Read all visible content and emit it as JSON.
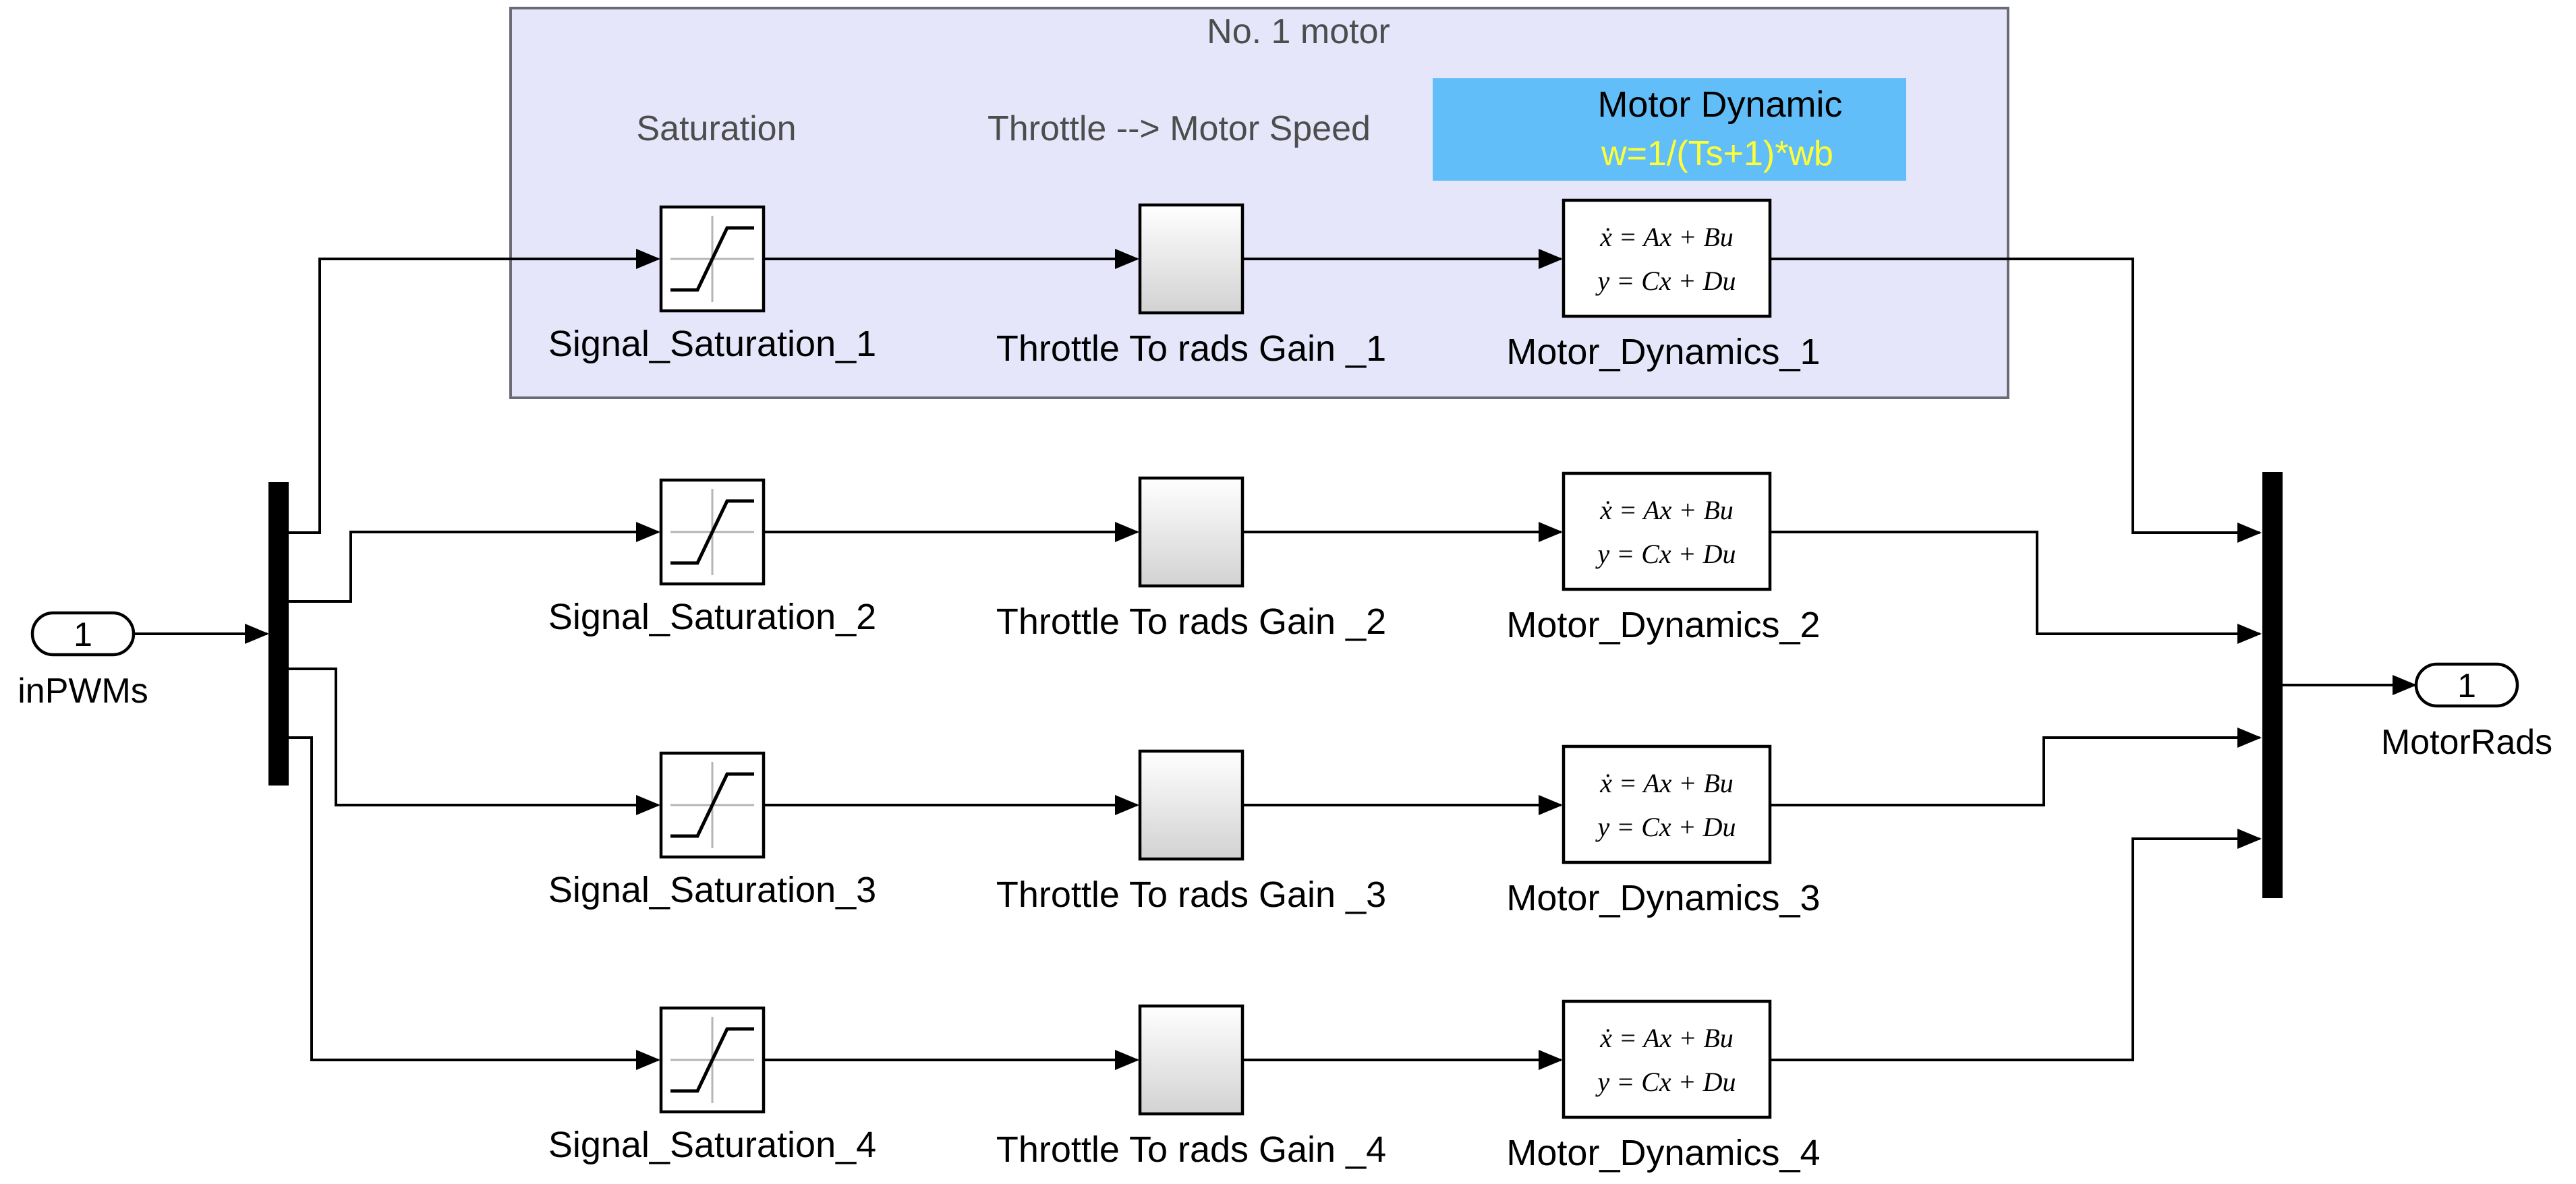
{
  "area": {
    "title": "No. 1 motor",
    "annotation_saturation": "Saturation",
    "annotation_throttle": "Throttle --> Motor Speed",
    "motor_dynamic_title": "Motor Dynamic",
    "motor_dynamic_formula": "w=1/(Ts+1)*wb",
    "colors": {
      "area_fill": "#e6e6fb",
      "area_border": "#6b6b78",
      "note_fill": "#62bef9",
      "formula": "#ffff33"
    }
  },
  "inport": {
    "number": "1",
    "name": "inPWMs"
  },
  "outport": {
    "number": "1",
    "name": "MotorRads"
  },
  "state_space": {
    "line1": "ẋ = Ax + Bu",
    "line2": "y = Cx + Du"
  },
  "channels": [
    {
      "saturation": "Signal_Saturation_1",
      "gain": "Throttle To rads Gain _1",
      "dynamics": "Motor_Dynamics_1"
    },
    {
      "saturation": "Signal_Saturation_2",
      "gain": "Throttle To rads Gain _2",
      "dynamics": "Motor_Dynamics_2"
    },
    {
      "saturation": "Signal_Saturation_3",
      "gain": "Throttle To rads Gain _3",
      "dynamics": "Motor_Dynamics_3"
    },
    {
      "saturation": "Signal_Saturation_4",
      "gain": "Throttle To rads Gain _4",
      "dynamics": "Motor_Dynamics_4"
    }
  ]
}
